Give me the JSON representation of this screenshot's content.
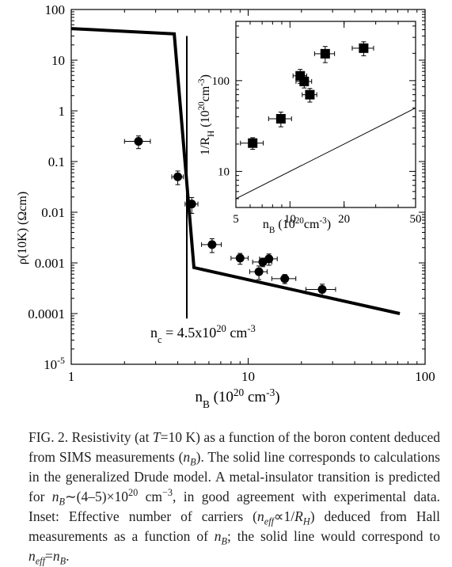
{
  "chart_data": [
    {
      "type": "scatter",
      "xlog": true,
      "ylog": true,
      "xlim": [
        1,
        100
      ],
      "ylim": [
        1e-05,
        100
      ],
      "xticks": [
        1,
        10,
        100
      ],
      "yticks": [
        100,
        10,
        1,
        0.1,
        0.01,
        0.001,
        0.0001,
        {
          "value": 1e-05,
          "label": "10",
          "sup": "-5"
        }
      ],
      "ylabel": "ρ(10K) (Ωcm)",
      "xlabel": [
        {
          "t": "n"
        },
        {
          "t": "B",
          "s": "sub"
        },
        {
          "t": "  (10"
        },
        {
          "t": "20",
          "s": "sup"
        },
        {
          "t": " cm"
        },
        {
          "t": "-3",
          "s": "sup"
        },
        {
          "t": ")"
        }
      ],
      "series": [
        {
          "marker": "circle",
          "color": "#000000",
          "x": [
            2.4,
            4.0,
            4.8,
            6.25,
            9.0,
            12.1,
            13.1,
            11.5,
            16.1,
            26.2
          ],
          "values": [
            0.25,
            0.05,
            0.0145,
            0.0023,
            0.00124,
            0.00104,
            0.0012,
            0.00067,
            0.00049,
            0.0003
          ],
          "x_err": [
            0.4,
            0.3,
            0.4,
            0.8,
            1.0,
            1.5,
            1.5,
            1.3,
            2.5,
            5.0
          ],
          "y_err": [
            0.07,
            0.015,
            0.005,
            0.0007,
            0.0003,
            0.0002,
            0.0003,
            0.0002,
            0.0001,
            8e-05
          ]
        },
        {
          "marker": "line",
          "color": "#000000",
          "width": 4,
          "x": [
            1,
            3.82,
            4.94,
            72
          ],
          "values": [
            42,
            33,
            0.00081,
            0.0001
          ]
        }
      ],
      "vline": {
        "x": 4.5,
        "ylim": [
          8e-05,
          30
        ]
      },
      "annotation": [
        {
          "t": "n"
        },
        {
          "t": "c",
          "s": "sub"
        },
        {
          "t": " = 4.5x10"
        },
        {
          "t": "20",
          "s": "sup"
        },
        {
          "t": " cm"
        },
        {
          "t": "-3",
          "s": "sup"
        }
      ]
    },
    {
      "type": "scatter",
      "xlog": true,
      "ylog": true,
      "xlim": [
        5,
        50
      ],
      "ylim": [
        4,
        450
      ],
      "xticks": [
        5,
        10,
        20,
        50
      ],
      "yticks": [
        10,
        100
      ],
      "ylabel": [
        {
          "t": "1/R"
        },
        {
          "t": "H",
          "s": "sub"
        },
        {
          "t": " (10"
        },
        {
          "t": "20",
          "s": "sup"
        },
        {
          "t": "cm"
        },
        {
          "t": "-3",
          "s": "sup"
        },
        {
          "t": ")"
        }
      ],
      "xlabel": [
        {
          "t": "n"
        },
        {
          "t": "B",
          "s": "sub"
        },
        {
          "t": " (10"
        },
        {
          "t": "20",
          "s": "sup"
        },
        {
          "t": "cm"
        },
        {
          "t": "-3",
          "s": "sup"
        },
        {
          "t": ")"
        }
      ],
      "series": [
        {
          "marker": "square",
          "color": "#000000",
          "x": [
            6.2,
            8.9,
            11.4,
            12.0,
            12.9,
            15.7,
            25.7
          ],
          "values": [
            20.5,
            38,
            113,
            98,
            70,
            198,
            228
          ],
          "x_err": [
            0.9,
            1.3,
            1.0,
            1.2,
            1.2,
            2.0,
            3.5
          ],
          "y_err": [
            3,
            7,
            20,
            15,
            12,
            40,
            40
          ]
        },
        {
          "marker": "line",
          "color": "#000000",
          "width": 1,
          "x": [
            5,
            50
          ],
          "values": [
            5,
            50
          ]
        }
      ]
    }
  ],
  "caption": [
    {
      "t": "FIG. 2. Resistivity (at "
    },
    {
      "t": "T",
      "s": "i"
    },
    {
      "t": "=10 K) as a function of the boron content deduced from SIMS measurements ("
    },
    {
      "t": "n",
      "s": "i"
    },
    {
      "t": "B",
      "s": "sub"
    },
    {
      "t": "). The solid line corresponds to calculations in the generalized Drude model. A metal-insulator transition is predicted for "
    },
    {
      "t": "n",
      "s": "i"
    },
    {
      "t": "B",
      "s": "sub"
    },
    {
      "t": "∼(4–5)×10"
    },
    {
      "t": "20",
      "s": "sup"
    },
    {
      "t": " cm"
    },
    {
      "t": "−3",
      "s": "sup"
    },
    {
      "t": ", in good agreement with experimental data. Inset: Effective number of carriers ("
    },
    {
      "t": "n",
      "s": "i"
    },
    {
      "t": "eff",
      "s": "sub"
    },
    {
      "t": "∝1/"
    },
    {
      "t": "R",
      "s": "i"
    },
    {
      "t": "H",
      "s": "sub"
    },
    {
      "t": ") deduced from Hall measurements as a function of "
    },
    {
      "t": "n",
      "s": "i"
    },
    {
      "t": "B",
      "s": "sub"
    },
    {
      "t": "; the solid line would correspond to "
    },
    {
      "t": "n",
      "s": "i"
    },
    {
      "t": "eff",
      "s": "sub"
    },
    {
      "t": "="
    },
    {
      "t": "n",
      "s": "i"
    },
    {
      "t": "B",
      "s": "sub"
    },
    {
      "t": "."
    }
  ]
}
